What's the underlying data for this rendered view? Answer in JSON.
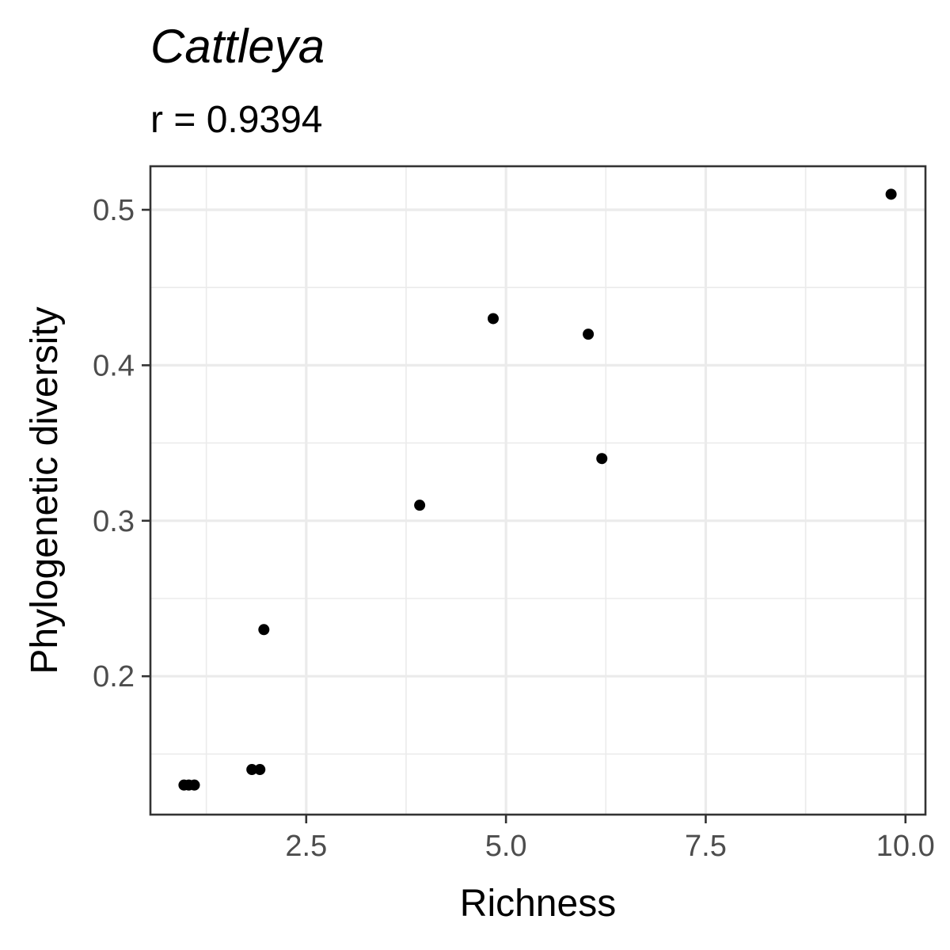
{
  "chart_data": {
    "type": "scatter",
    "title": "Cattleya",
    "subtitle": "r = 0.9394",
    "xlabel": "Richness",
    "ylabel": "Phylogenetic diversity",
    "xlim": [
      0.55,
      10.25
    ],
    "ylim": [
      0.111,
      0.528
    ],
    "x_ticks": [
      2.5,
      5.0,
      7.5,
      10.0
    ],
    "x_tick_labels": [
      "2.5",
      "5.0",
      "7.5",
      "10.0"
    ],
    "y_ticks": [
      0.2,
      0.3,
      0.4,
      0.5
    ],
    "y_tick_labels": [
      "0.2",
      "0.3",
      "0.4",
      "0.5"
    ],
    "x_minor": [
      1.25,
      3.75,
      6.25,
      8.75
    ],
    "y_minor": [
      0.15,
      0.25,
      0.35,
      0.45
    ],
    "grid": true,
    "points": [
      {
        "x": 0.97,
        "y": 0.13
      },
      {
        "x": 1.03,
        "y": 0.13
      },
      {
        "x": 1.1,
        "y": 0.13
      },
      {
        "x": 1.82,
        "y": 0.14
      },
      {
        "x": 1.92,
        "y": 0.14
      },
      {
        "x": 1.97,
        "y": 0.23
      },
      {
        "x": 3.92,
        "y": 0.31
      },
      {
        "x": 4.84,
        "y": 0.43
      },
      {
        "x": 6.03,
        "y": 0.42
      },
      {
        "x": 6.2,
        "y": 0.34
      },
      {
        "x": 9.82,
        "y": 0.51
      }
    ]
  }
}
